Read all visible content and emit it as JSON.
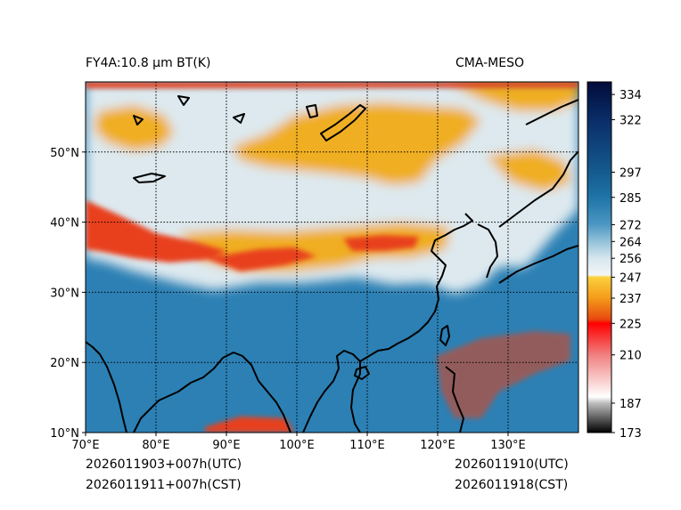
{
  "header": {
    "product_title": "FY4A:10.8 μm BT(K)",
    "model_name": "CMA-MESO"
  },
  "footer": {
    "init_utc": "2026011903+007h(UTC)",
    "init_cst": "2026011911+007h(CST)",
    "valid_utc": "2026011910(UTC)",
    "valid_cst": "2026011918(CST)"
  },
  "map": {
    "lon_range": [
      70,
      140
    ],
    "lat_range": [
      10,
      60
    ],
    "lon_ticks": [
      {
        "value": 70,
        "label": "70°E"
      },
      {
        "value": 80,
        "label": "80°E"
      },
      {
        "value": 90,
        "label": "90°E"
      },
      {
        "value": 100,
        "label": "100°E"
      },
      {
        "value": 110,
        "label": "110°E"
      },
      {
        "value": 120,
        "label": "120°E"
      },
      {
        "value": 130,
        "label": "130°E"
      }
    ],
    "lat_ticks": [
      {
        "value": 10,
        "label": "10°N"
      },
      {
        "value": 20,
        "label": "20°N"
      },
      {
        "value": 30,
        "label": "30°N"
      },
      {
        "value": 40,
        "label": "40°N"
      },
      {
        "value": 50,
        "label": "50°N"
      }
    ],
    "gridline_style": "dotted",
    "colors": {
      "warm_surface": "#2c80b4",
      "mid_cloud": "#dde9ef",
      "cold_cloud": "#f0ae22",
      "very_cold": "#e8401a",
      "coastline": "#000000"
    }
  },
  "colorbar": {
    "vmin": 173,
    "vmax": 340,
    "tick_values": [
      173,
      187,
      210,
      225,
      237,
      247,
      256,
      264,
      272,
      285,
      297,
      322,
      334
    ],
    "stops": [
      {
        "value": 173,
        "color": "#000000"
      },
      {
        "value": 187,
        "color": "#bdbdbd"
      },
      {
        "value": 190,
        "color": "#ffffff"
      },
      {
        "value": 210,
        "color": "#f08080"
      },
      {
        "value": 225,
        "color": "#ff0000"
      },
      {
        "value": 227,
        "color": "#e84a10"
      },
      {
        "value": 237,
        "color": "#f49a1a"
      },
      {
        "value": 247,
        "color": "#fbd03c"
      },
      {
        "value": 248,
        "color": "#f4f6f8"
      },
      {
        "value": 256,
        "color": "#d6e6ee"
      },
      {
        "value": 264,
        "color": "#94c2d9"
      },
      {
        "value": 272,
        "color": "#4c97c3"
      },
      {
        "value": 285,
        "color": "#1f74a8"
      },
      {
        "value": 297,
        "color": "#145b8e"
      },
      {
        "value": 322,
        "color": "#0a2d68"
      },
      {
        "value": 340,
        "color": "#020b3a"
      }
    ]
  }
}
